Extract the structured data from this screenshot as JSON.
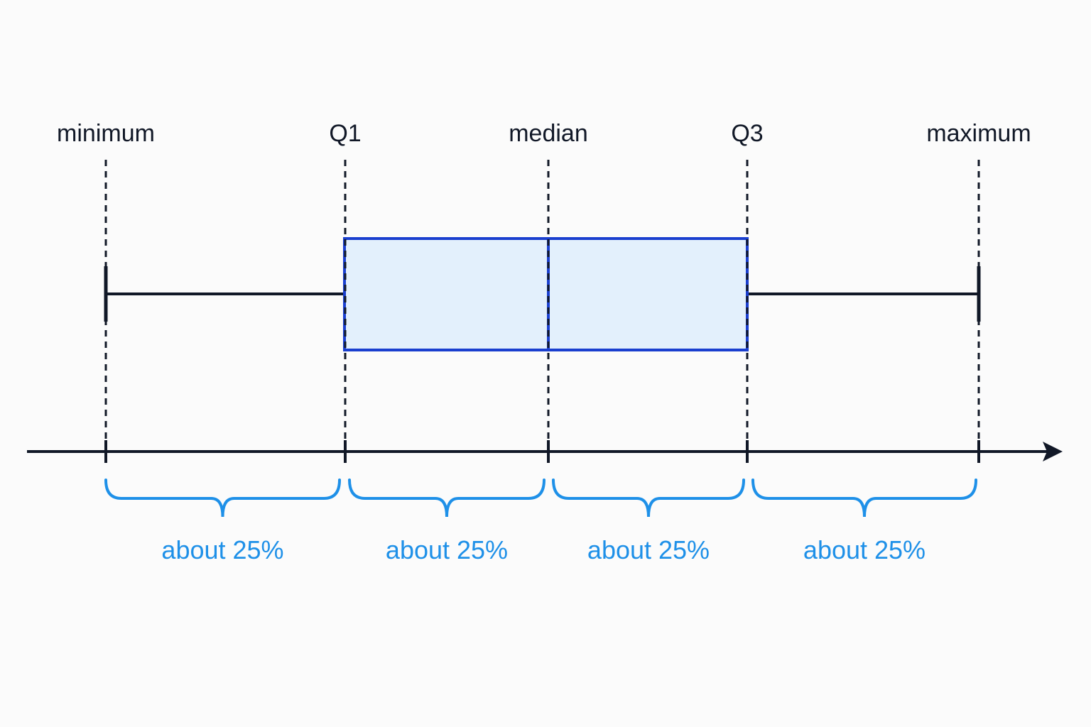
{
  "markers": [
    {
      "label": "minimum"
    },
    {
      "label": "Q1"
    },
    {
      "label": "median"
    },
    {
      "label": "Q3"
    },
    {
      "label": "maximum"
    }
  ],
  "segments": [
    {
      "label": "about 25%"
    },
    {
      "label": "about 25%"
    },
    {
      "label": "about 25%"
    },
    {
      "label": "about 25%"
    }
  ]
}
